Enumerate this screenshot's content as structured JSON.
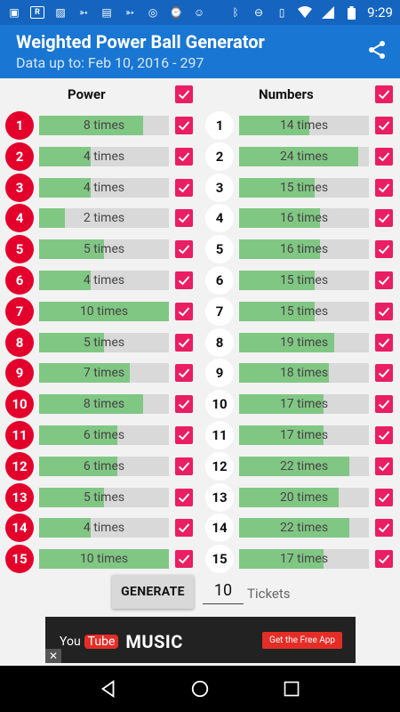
{
  "status": {
    "time": "9:29",
    "notification_icons": [
      "image-icon",
      "r-badge-icon",
      "photo-icon",
      "bird-icon",
      "news-icon",
      "bird-icon",
      "circle-app-icon",
      "watch-icon",
      "cat-icon"
    ],
    "system_icons": [
      "bluetooth-icon",
      "minus-circle-icon",
      "vibrate-icon",
      "wifi-icon",
      "signal-icon",
      "battery-icon"
    ]
  },
  "appbar": {
    "title": "Weighted Power Ball Generator",
    "subtitle": "Data up to: Feb 10, 2016 - 297",
    "share_icon": "share-icon"
  },
  "columns": {
    "power_header": "Power",
    "numbers_header": "Numbers"
  },
  "power_rows": [
    {
      "num": "1",
      "label": "8 times",
      "fill": 0.8
    },
    {
      "num": "2",
      "label": "4 times",
      "fill": 0.4
    },
    {
      "num": "3",
      "label": "4 times",
      "fill": 0.4
    },
    {
      "num": "4",
      "label": "2 times",
      "fill": 0.2
    },
    {
      "num": "5",
      "label": "5 times",
      "fill": 0.5
    },
    {
      "num": "6",
      "label": "4 times",
      "fill": 0.4
    },
    {
      "num": "7",
      "label": "10 times",
      "fill": 1.0
    },
    {
      "num": "8",
      "label": "5 times",
      "fill": 0.5
    },
    {
      "num": "9",
      "label": "7 times",
      "fill": 0.7
    },
    {
      "num": "10",
      "label": "8 times",
      "fill": 0.8
    },
    {
      "num": "11",
      "label": "6 times",
      "fill": 0.6
    },
    {
      "num": "12",
      "label": "6 times",
      "fill": 0.6
    },
    {
      "num": "13",
      "label": "5 times",
      "fill": 0.5
    },
    {
      "num": "14",
      "label": "4 times",
      "fill": 0.4
    },
    {
      "num": "15",
      "label": "10 times",
      "fill": 1.0
    }
  ],
  "number_rows": [
    {
      "num": "1",
      "label": "14 times",
      "fill": 0.54
    },
    {
      "num": "2",
      "label": "24 times",
      "fill": 0.92
    },
    {
      "num": "3",
      "label": "15 times",
      "fill": 0.58
    },
    {
      "num": "4",
      "label": "16 times",
      "fill": 0.62
    },
    {
      "num": "5",
      "label": "16 times",
      "fill": 0.62
    },
    {
      "num": "6",
      "label": "15 times",
      "fill": 0.58
    },
    {
      "num": "7",
      "label": "15 times",
      "fill": 0.58
    },
    {
      "num": "8",
      "label": "19 times",
      "fill": 0.73
    },
    {
      "num": "9",
      "label": "18 times",
      "fill": 0.69
    },
    {
      "num": "10",
      "label": "17 times",
      "fill": 0.65
    },
    {
      "num": "11",
      "label": "17 times",
      "fill": 0.65
    },
    {
      "num": "12",
      "label": "22 times",
      "fill": 0.85
    },
    {
      "num": "13",
      "label": "20 times",
      "fill": 0.77
    },
    {
      "num": "14",
      "label": "22 times",
      "fill": 0.85
    },
    {
      "num": "15",
      "label": "17 times",
      "fill": 0.65
    }
  ],
  "controls": {
    "generate_label": "GENERATE",
    "tickets_value": "10",
    "tickets_label": "Tickets"
  },
  "ad": {
    "brand_you": "You",
    "brand_tube": "Tube",
    "brand_music": "MUSIC",
    "cta": "Get the Free App",
    "close": "✕"
  },
  "colors": {
    "appbar": "#1976d2",
    "statusbar": "#1565c0",
    "checkbox": "#e91e63",
    "power_ball": "#e3002b",
    "bar_fill": "#81c784",
    "bar_bg": "#d9d9d9"
  }
}
